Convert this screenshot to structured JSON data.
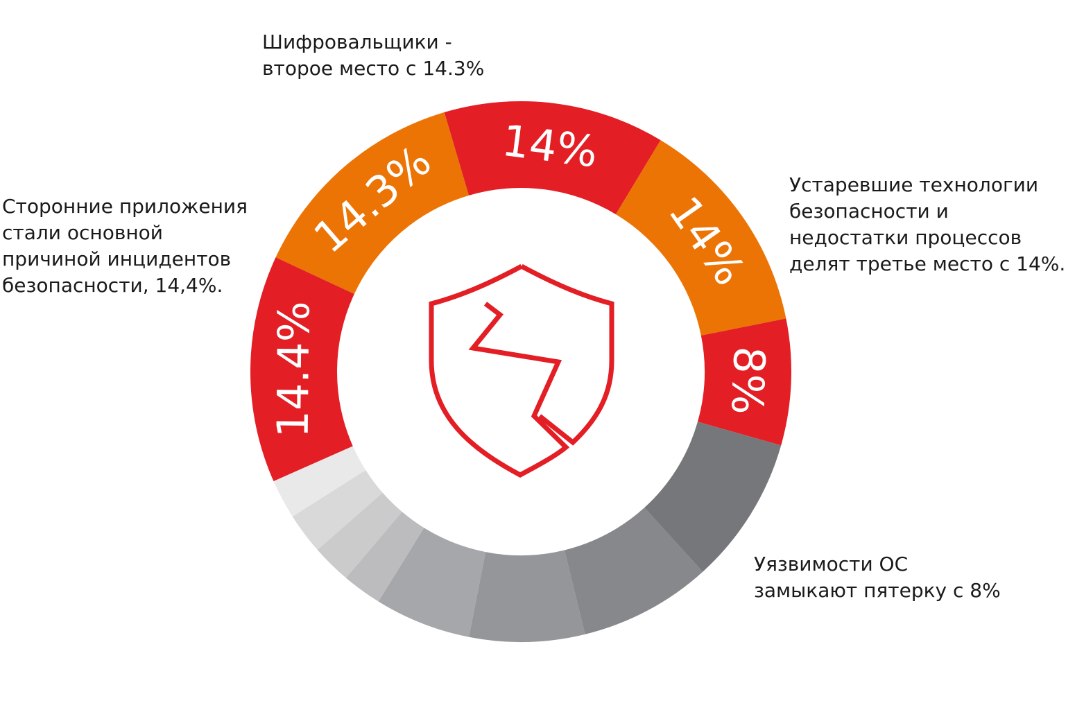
{
  "chart_data": {
    "type": "pie",
    "variant": "donut",
    "title": "",
    "slices": [
      {
        "label": "14.3%",
        "value": 14.3,
        "color": "#ec7405"
      },
      {
        "label": "14%",
        "value": 14,
        "color": "#e31e24"
      },
      {
        "label": "14%",
        "value": 14,
        "color": "#ec7405"
      },
      {
        "label": "8%",
        "value": 8,
        "color": "#e31e24"
      },
      {
        "label": "",
        "value": 9.4,
        "color": "#76777b"
      },
      {
        "label": "",
        "value": 8.4,
        "color": "#87888c"
      },
      {
        "label": "",
        "value": 7.3,
        "color": "#95969a"
      },
      {
        "label": "",
        "value": 6.1,
        "color": "#a6a7aa"
      },
      {
        "label": "",
        "value": 2.5,
        "color": "#bcbcbe"
      },
      {
        "label": "",
        "value": 2.5,
        "color": "#cbcbcc"
      },
      {
        "label": "",
        "value": 2.6,
        "color": "#d9d9d9"
      },
      {
        "label": "",
        "value": 2.5,
        "color": "#e9e9e9"
      },
      {
        "label": "14.4%",
        "value": 14.4,
        "color": "#e31e24"
      }
    ],
    "center_icon": "broken-shield-icon",
    "accent_color": "#e31e24"
  },
  "annotations": {
    "ransomware": [
      "Шифровальщики -",
      "второе место с 14.3%"
    ],
    "third_party": [
      "Сторонние приложения",
      "стали основной",
      "причиной инцидентов",
      "безопасности,  14,4%."
    ],
    "outdated": [
      "Устаревшие технологии",
      "безопасности и",
      "недостатки процессов",
      "делят третье место с 14%."
    ],
    "os": [
      "Уязвимости ОС",
      "замыкают пятерку с 8%"
    ]
  }
}
